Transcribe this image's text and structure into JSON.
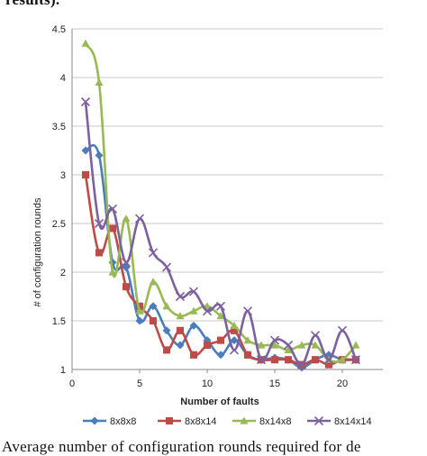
{
  "page": {
    "top_text": "results).",
    "bottom_text": "Average number of configuration rounds required for de"
  },
  "chart_data": {
    "type": "line",
    "title": "",
    "xlabel": "Number of faults",
    "ylabel": "# of configuration rounds",
    "xlim": [
      0,
      23
    ],
    "ylim": [
      1,
      4.5
    ],
    "xticks": [
      0,
      5,
      10,
      15,
      20
    ],
    "yticks": [
      1,
      1.5,
      2,
      2.5,
      3,
      3.5,
      4,
      4.5
    ],
    "xtick_labels": [
      "0",
      "5",
      "10",
      "15",
      "20"
    ],
    "ytick_labels": [
      "1",
      "1.5",
      "2",
      "2.5",
      "3",
      "3.5",
      "4",
      "4.5"
    ],
    "grid": "horizontal",
    "legend_position": "bottom",
    "x": [
      1,
      2,
      3,
      4,
      5,
      6,
      7,
      8,
      9,
      10,
      11,
      12,
      13,
      14,
      15,
      16,
      17,
      18,
      19,
      20,
      21
    ],
    "series": [
      {
        "name": "8x8x8",
        "color": "#4a7ebb",
        "marker": "diamond",
        "values": [
          3.25,
          3.2,
          2.1,
          2.05,
          1.5,
          1.65,
          1.4,
          1.25,
          1.45,
          1.3,
          1.15,
          1.3,
          1.15,
          1.1,
          1.12,
          1.1,
          1.02,
          1.1,
          1.15,
          1.1,
          1.1
        ]
      },
      {
        "name": "8x8x14",
        "color": "#be4b48",
        "marker": "square",
        "values": [
          3.0,
          2.2,
          2.45,
          1.85,
          1.65,
          1.5,
          1.2,
          1.4,
          1.15,
          1.25,
          1.3,
          1.4,
          1.15,
          1.1,
          1.1,
          1.1,
          1.05,
          1.1,
          1.05,
          1.1,
          1.1
        ]
      },
      {
        "name": "8x14x8",
        "color": "#98b954",
        "marker": "triangle",
        "values": [
          4.35,
          3.95,
          2.0,
          2.55,
          1.6,
          1.9,
          1.65,
          1.55,
          1.6,
          1.65,
          1.55,
          1.45,
          1.3,
          1.25,
          1.25,
          1.2,
          1.25,
          1.25,
          1.1,
          1.1,
          1.25
        ]
      },
      {
        "name": "8x14x14",
        "color": "#7d60a0",
        "marker": "x",
        "values": [
          3.75,
          2.5,
          2.65,
          2.1,
          2.55,
          2.2,
          2.05,
          1.75,
          1.8,
          1.6,
          1.65,
          1.2,
          1.6,
          1.1,
          1.3,
          1.25,
          1.05,
          1.35,
          1.1,
          1.4,
          1.1
        ]
      }
    ]
  }
}
